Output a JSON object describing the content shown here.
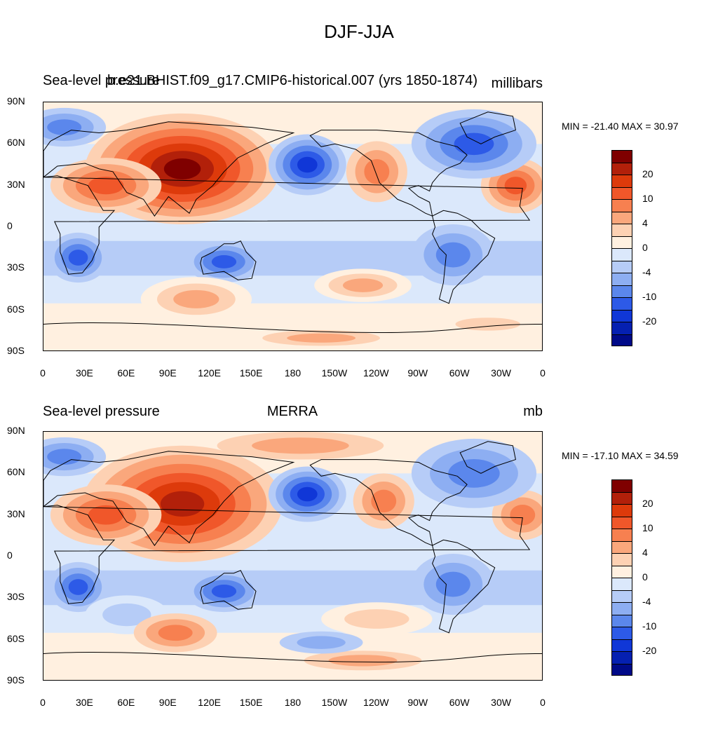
{
  "title": "DJF-JJA",
  "axes": {
    "lat_labels": [
      "90N",
      "60N",
      "30N",
      "0",
      "30S",
      "60S",
      "90S"
    ],
    "lon_labels": [
      "0",
      "30E",
      "60E",
      "90E",
      "120E",
      "150E",
      "180",
      "150W",
      "120W",
      "90W",
      "60W",
      "30W",
      "0"
    ]
  },
  "colorbar": {
    "colors": [
      "#7f0000",
      "#b2200a",
      "#dd3a0b",
      "#f0572a",
      "#f78050",
      "#faa77c",
      "#fdd1b3",
      "#fff0e0",
      "#dbe8fb",
      "#b6ccf7",
      "#8daef2",
      "#5b87ec",
      "#2d5ae7",
      "#1037d7",
      "#0520b1",
      "#000a88"
    ],
    "tick_labels": [
      "20",
      "10",
      "4",
      "0",
      "-4",
      "-10",
      "-20"
    ]
  },
  "panels": [
    {
      "left_title": "Sea-level pressure",
      "center_title": "b.e21.BHIST.f09_g17.CMIP6-historical.007 (yrs 1850-1874)",
      "units": "millibars",
      "minmax": "MIN = -21.40 MAX =  30.97"
    },
    {
      "left_title": "Sea-level pressure",
      "center_title": "MERRA",
      "units": "mb",
      "minmax": "MIN = -17.10 MAX =  34.59"
    }
  ]
}
